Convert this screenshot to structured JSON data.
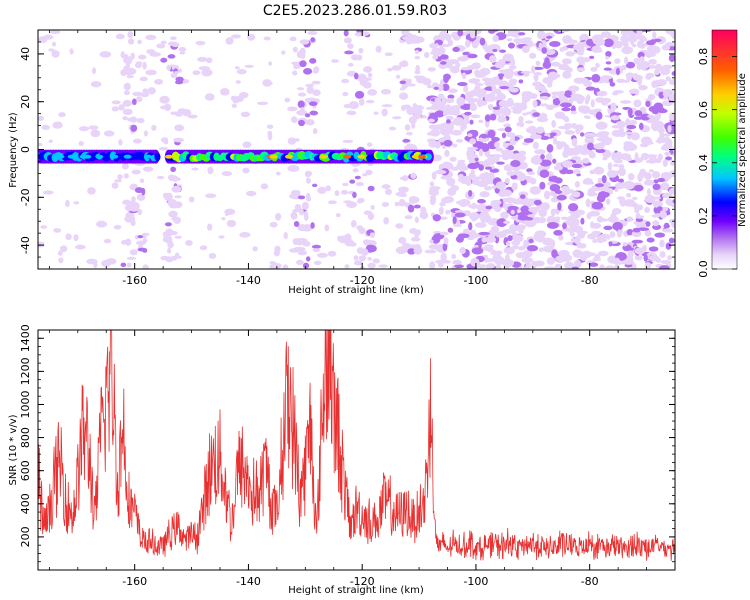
{
  "title": "C2E5.2023.286.01.59.R03",
  "chart_data": [
    {
      "type": "heatmap",
      "xlabel": "Height of straight line (km)",
      "ylabel": "Frequency (Hz)",
      "xlim": [
        -177,
        -65
      ],
      "ylim": [
        -50,
        50
      ],
      "xticks": [
        -160,
        -140,
        -120,
        -100,
        -80
      ],
      "yticks": [
        -40,
        -20,
        0,
        20,
        40
      ],
      "colorbar": {
        "label": "Normalized spectral amplitude",
        "range": [
          0.0,
          0.9
        ],
        "ticks": [
          0.0,
          0.2,
          0.4,
          0.6,
          0.8
        ],
        "colors": [
          "#ffffff",
          "#e8d4f8",
          "#b070f0",
          "#7000ff",
          "#0000ff",
          "#00c8ff",
          "#00ff80",
          "#40ff00",
          "#c0ff00",
          "#ffd000",
          "#ff6000",
          "#ff0060"
        ]
      },
      "features": [
        {
          "x_range": [
            -177,
            -156
          ],
          "frequency": -3,
          "peak_amplitude": 0.45
        },
        {
          "x_range": [
            -154,
            -108
          ],
          "frequency": -3,
          "peak_amplitude": 0.85
        },
        {
          "x_range": [
            -108,
            -65
          ],
          "frequency": null,
          "peak_amplitude": 0.2
        }
      ]
    },
    {
      "type": "line",
      "xlabel": "Height of straight line (km)",
      "ylabel": "SNR (10 * v/v)",
      "xlim": [
        -177,
        -65
      ],
      "ylim": [
        0,
        1450
      ],
      "xticks": [
        -160,
        -140,
        -120,
        -100,
        -80
      ],
      "yticks": [
        200,
        400,
        600,
        800,
        1000,
        1200,
        1400
      ],
      "series_color": "#e83030",
      "x": [
        -177,
        -176,
        -175,
        -174,
        -173,
        -172,
        -171,
        -170,
        -169,
        -168,
        -167,
        -166,
        -165,
        -164,
        -163,
        -162,
        -161,
        -160,
        -159,
        -158,
        -157,
        -156,
        -155,
        -154,
        -153,
        -152,
        -151,
        -150,
        -149,
        -148,
        -147,
        -146,
        -145,
        -144,
        -143,
        -142,
        -141,
        -140,
        -139,
        -138,
        -137,
        -136,
        -135,
        -134,
        -133,
        -132,
        -131,
        -130,
        -129,
        -128,
        -127,
        -126,
        -125,
        -124,
        -123,
        -122,
        -121,
        -120,
        -119,
        -118,
        -117,
        -116,
        -115,
        -114,
        -113,
        -112,
        -111,
        -110,
        -109,
        -108,
        -107,
        -106,
        -105,
        -104,
        -103,
        -102,
        -101,
        -100,
        -99,
        -98,
        -97,
        -96,
        -95,
        -94,
        -93,
        -92,
        -91,
        -90,
        -89,
        -88,
        -87,
        -86,
        -85,
        -84,
        -83,
        -82,
        -81,
        -80,
        -79,
        -78,
        -77,
        -76,
        -75,
        -74,
        -73,
        -72,
        -71,
        -70,
        -69,
        -68,
        -67,
        -66,
        -65
      ],
      "y": [
        600,
        250,
        350,
        550,
        650,
        420,
        320,
        540,
        860,
        700,
        300,
        780,
        1050,
        1250,
        520,
        880,
        420,
        340,
        200,
        170,
        160,
        140,
        150,
        200,
        260,
        240,
        180,
        210,
        200,
        380,
        560,
        660,
        680,
        480,
        260,
        580,
        620,
        520,
        460,
        460,
        620,
        420,
        340,
        760,
        1100,
        820,
        460,
        600,
        900,
        200,
        980,
        1420,
        940,
        780,
        450,
        260,
        380,
        330,
        300,
        280,
        330,
        420,
        380,
        320,
        340,
        360,
        300,
        360,
        400,
        980,
        160,
        150,
        130,
        160,
        140,
        150,
        170,
        140,
        130,
        150,
        160,
        140,
        150,
        170,
        130,
        140,
        150,
        160,
        140,
        130,
        150,
        140,
        160,
        150,
        140,
        130,
        150,
        160,
        140,
        150,
        130,
        140,
        150,
        120,
        140,
        150,
        160,
        130,
        140,
        150,
        130,
        140,
        120
      ]
    }
  ]
}
